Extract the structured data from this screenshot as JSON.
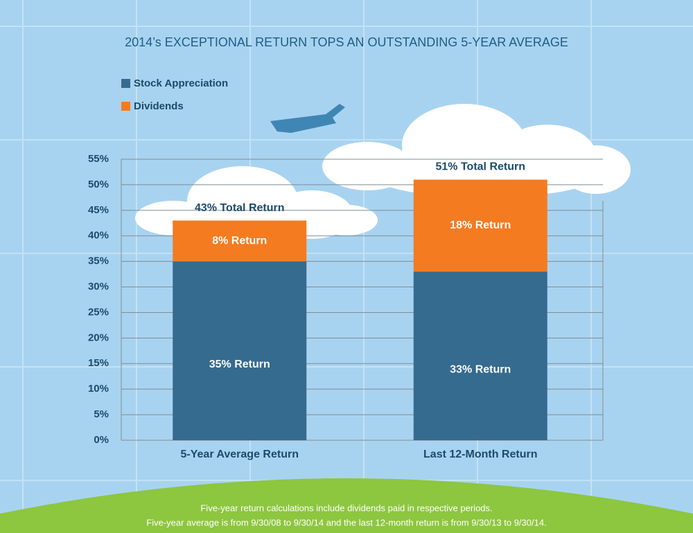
{
  "chart_data": {
    "type": "stacked_bar",
    "title": "2014’s EXCEPTIONAL RETURN TOPS AN OUTSTANDING 5-YEAR AVERAGE",
    "categories": [
      "5-Year Average Return",
      "Last 12-Month Return"
    ],
    "series": [
      {
        "name": "Stock Appreciation",
        "color": "#356b8f",
        "values": [
          35,
          33
        ],
        "value_labels": [
          "35% Return",
          "33% Return"
        ]
      },
      {
        "name": "Dividends",
        "color": "#f47b20",
        "values": [
          8,
          18
        ],
        "value_labels": [
          "8% Return",
          "18% Return"
        ]
      }
    ],
    "totals": [
      43,
      51
    ],
    "total_labels": [
      "43% Total Return",
      "51% Total Return"
    ],
    "ylim": [
      0,
      55
    ],
    "yticks": [
      {
        "value": 0,
        "label": "0%"
      },
      {
        "value": 5,
        "label": "5%"
      },
      {
        "value": 10,
        "label": "10%"
      },
      {
        "value": 15,
        "label": "15%"
      },
      {
        "value": 20,
        "label": "20%"
      },
      {
        "value": 25,
        "label": "25%"
      },
      {
        "value": 30,
        "label": "30%"
      },
      {
        "value": 35,
        "label": "35%"
      },
      {
        "value": 40,
        "label": "40%"
      },
      {
        "value": 45,
        "label": "45%"
      },
      {
        "value": 50,
        "label": "50%"
      },
      {
        "value": 55,
        "label": "55%"
      }
    ],
    "grid": true,
    "notes": [
      "Five-year return calculations include dividends paid in respective periods.",
      "Five-year average is from 9/30/08 to 9/30/14 and the last 12-month return is from 9/30/13 to 9/30/14."
    ]
  }
}
